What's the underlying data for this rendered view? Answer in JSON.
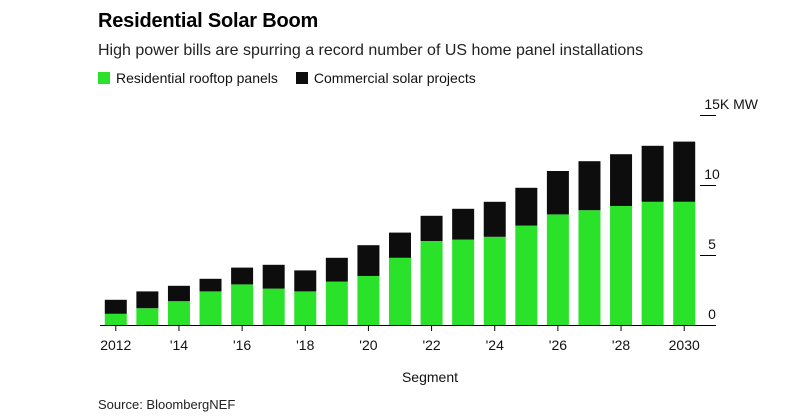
{
  "header": {
    "title": "Residential Solar Boom",
    "subtitle": "High power bills are spurring a record number of US home panel installations"
  },
  "legend": {
    "residential": "Residential rooftop panels",
    "commercial": "Commercial solar projects"
  },
  "footer": {
    "source": "Source: BloombergNEF"
  },
  "colors": {
    "residential": "#2be22b",
    "commercial": "#0d0d0d"
  },
  "chart_data": {
    "type": "bar",
    "stacked": true,
    "title": "Residential Solar Boom",
    "subtitle": "High power bills are spurring a record number of US home panel installations",
    "xlabel": "Segment",
    "ylabel": "15K MW",
    "ylim": [
      0,
      15
    ],
    "y_ticks": [
      0,
      5,
      10,
      15
    ],
    "y_tick_labels": [
      "0",
      "5",
      "10",
      "15K MW"
    ],
    "x_tick_labels": [
      "2012",
      "'14",
      "'16",
      "'18",
      "'20",
      "'22",
      "'24",
      "'26",
      "'28",
      "2030"
    ],
    "categories": [
      "2012",
      "2013",
      "2014",
      "2015",
      "2016",
      "2017",
      "2018",
      "2019",
      "2020",
      "2021",
      "2022",
      "2023",
      "2024",
      "2025",
      "2026",
      "2027",
      "2028",
      "2029",
      "2030"
    ],
    "series": [
      {
        "name": "Residential rooftop panels",
        "values": [
          0.8,
          1.2,
          1.7,
          2.4,
          2.9,
          2.6,
          2.4,
          3.1,
          3.5,
          4.8,
          6.0,
          6.1,
          6.3,
          7.1,
          7.9,
          8.2,
          8.5,
          8.8,
          8.8
        ]
      },
      {
        "name": "Commercial solar projects",
        "values": [
          1.0,
          1.2,
          1.1,
          0.9,
          1.2,
          1.7,
          1.5,
          1.7,
          2.2,
          1.8,
          1.8,
          2.2,
          2.5,
          2.7,
          3.1,
          3.5,
          3.7,
          4.0,
          4.3
        ]
      }
    ],
    "legend_position": "top-left",
    "y_axis_side": "right",
    "grid": false
  }
}
